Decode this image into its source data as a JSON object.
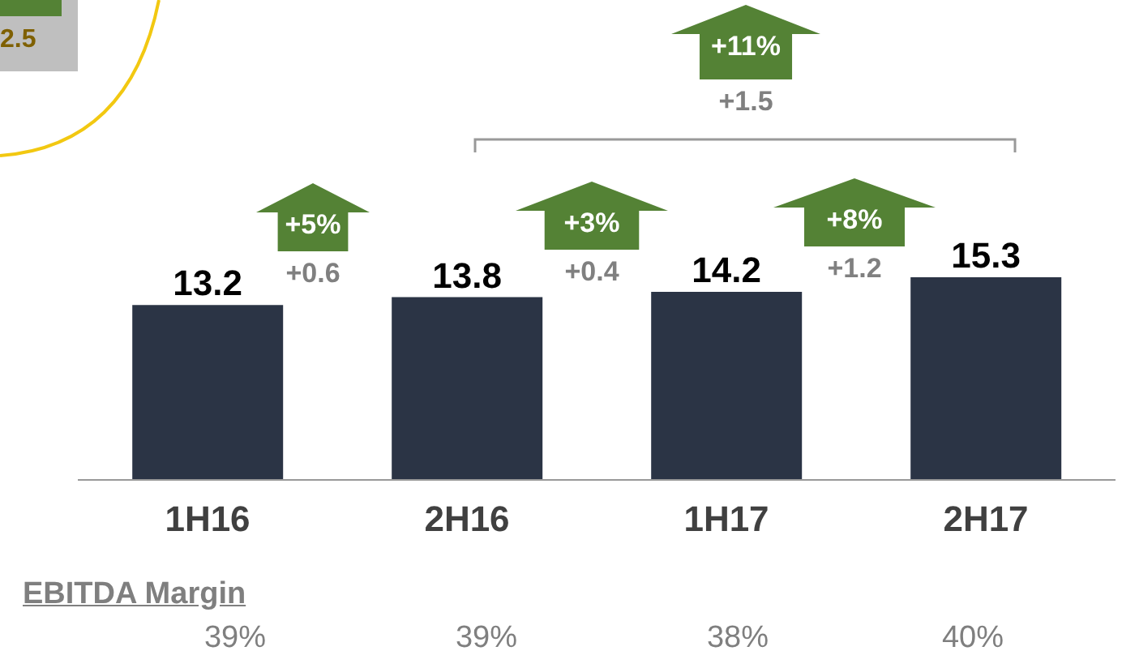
{
  "chart_data": {
    "type": "bar",
    "categories": [
      "1H16",
      "2H16",
      "1H17",
      "2H17"
    ],
    "series": [
      {
        "color": "#2b3445",
        "values": [
          13.2,
          13.8,
          14.2,
          15.3
        ]
      }
    ],
    "data_labels": true,
    "grid": false,
    "legend": false,
    "annotations": [
      "2.5",
      "+5%",
      "+0.6",
      "+3%",
      "+0.4",
      "+8%",
      "+1.2",
      "+11%",
      "+1.5",
      "EBITDA Margin",
      "39%",
      "39%",
      "38%",
      "40%"
    ]
  }
}
